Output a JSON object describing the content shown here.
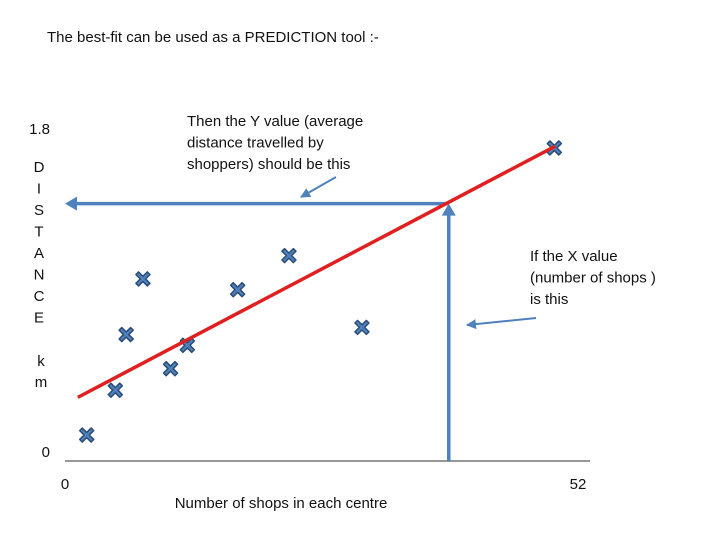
{
  "chart_data": {
    "type": "scatter",
    "title": "The best-fit can be used as a PREDICTION tool :-",
    "x_label": "Number of shops in each centre",
    "y_label": [
      "D",
      "I",
      "S",
      "T",
      "A",
      "N",
      "C",
      "E"
    ],
    "y_unit": [
      "k",
      "m"
    ],
    "xlim": [
      0,
      52
    ],
    "ylim": [
      0,
      1.8
    ],
    "xticks": [
      0,
      52
    ],
    "yticks": [
      0,
      1.8
    ],
    "series": [
      {
        "color": "#4f81bd",
        "x": [
          2.2,
          5.1,
          6.2,
          7.9,
          10.7,
          12.4,
          17.5,
          22.7,
          30.1,
          49.6
        ],
        "y": [
          0.1,
          0.35,
          0.66,
          0.97,
          0.47,
          0.6,
          0.91,
          1.1,
          0.7,
          1.7
        ]
      }
    ],
    "fit_line": {
      "color": "#e02020",
      "x": [
        1.3,
        49.7
      ],
      "y": [
        0.31,
        1.71
      ]
    },
    "prediction": {
      "color": "#4f81bd",
      "x": 38.9,
      "y": 1.39
    },
    "annotations": [
      {
        "lines": [
          "Then the Y value (average",
          "distance travelled by",
          "shoppers) should be this"
        ]
      },
      {
        "lines": [
          "If the X value",
          "(number of shops )",
          "is this"
        ]
      }
    ]
  }
}
